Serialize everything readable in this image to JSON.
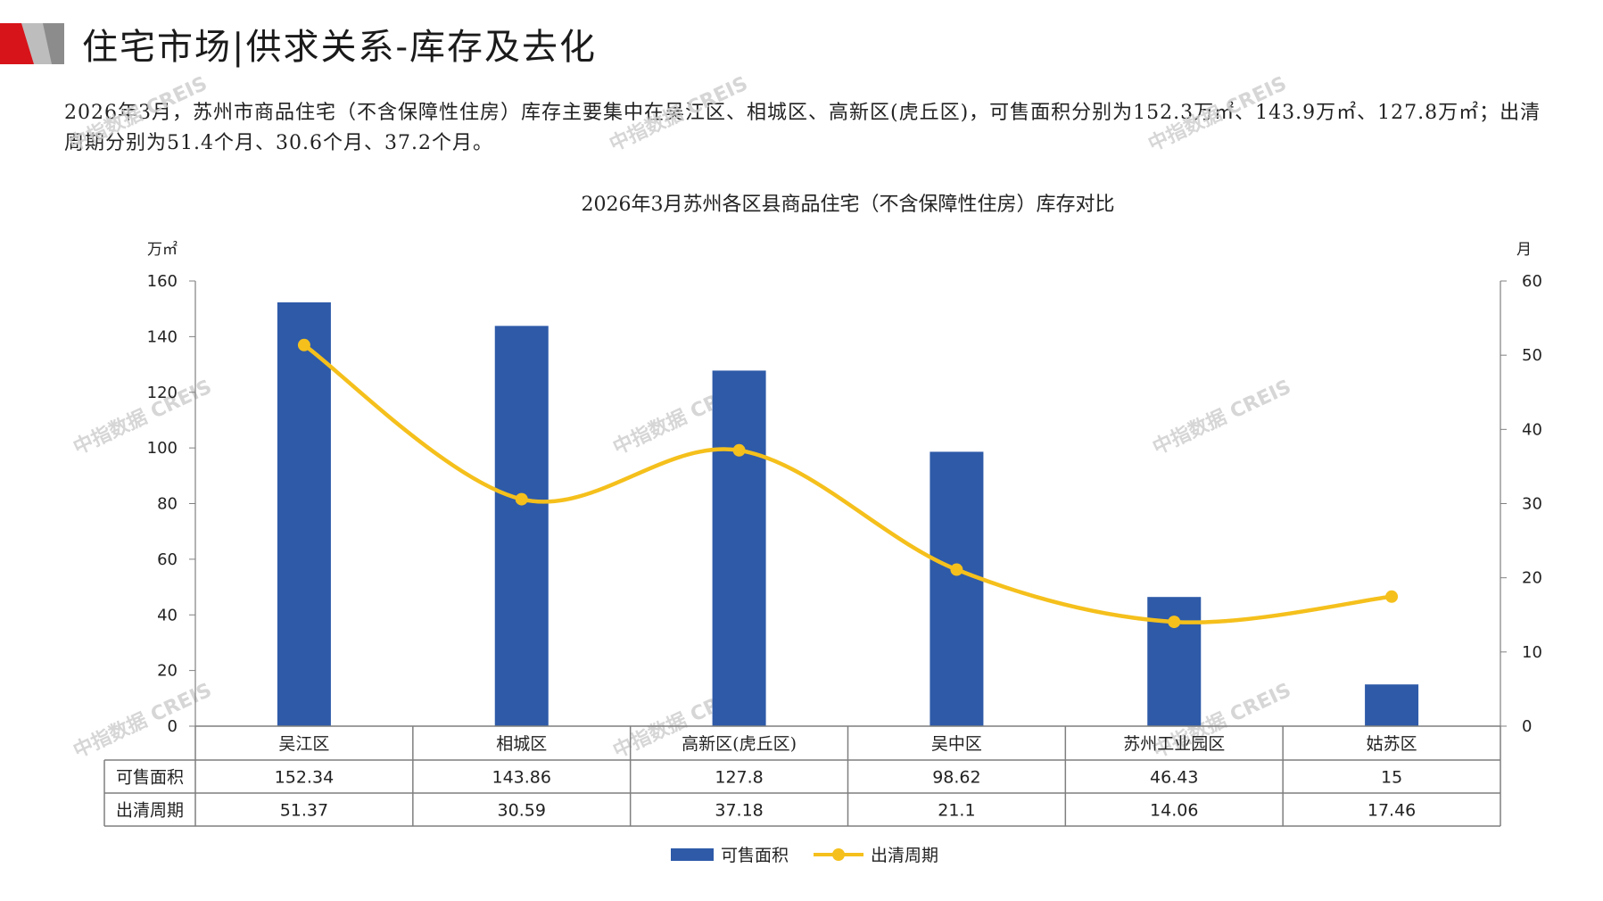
{
  "header": {
    "title": "住宅市场|供求关系-库存及去化"
  },
  "intro": {
    "text": "2026年3月，苏州市商品住宅（不含保障性住房）库存主要集中在吴江区、相城区、高新区(虎丘区)，可售面积分别为152.3万㎡、143.9万㎡、127.8万㎡；出清周期分别为51.4个月、30.6个月、37.2个月。"
  },
  "watermark": "中指数据 CREIS",
  "colors": {
    "bar": "#2E5AA8",
    "line": "#F5C01C",
    "accent": "#D7141A"
  },
  "chart_data": {
    "type": "bar+line",
    "title": "2026年3月苏州各区县商品住宅（不含保障性住房）库存对比",
    "ylabel_left": "万㎡",
    "ylabel_right": "月",
    "ylim_left": [
      0,
      160
    ],
    "yticks_left": [
      0,
      20,
      40,
      60,
      80,
      100,
      120,
      140,
      160
    ],
    "ylim_right": [
      0,
      60
    ],
    "yticks_right": [
      0,
      10,
      20,
      30,
      40,
      50,
      60
    ],
    "categories": [
      "吴江区",
      "相城区",
      "高新区(虎丘区)",
      "吴中区",
      "苏州工业园区",
      "姑苏区"
    ],
    "series": [
      {
        "name": "可售面积",
        "type": "bar",
        "axis": "left",
        "values": [
          152.34,
          143.86,
          127.8,
          98.62,
          46.43,
          15
        ],
        "labels": [
          "152.34",
          "143.86",
          "127.8",
          "98.62",
          "46.43",
          "15"
        ]
      },
      {
        "name": "出清周期",
        "type": "line",
        "axis": "right",
        "values": [
          51.37,
          30.59,
          37.18,
          21.1,
          14.06,
          17.46
        ],
        "labels": [
          "51.37",
          "30.59",
          "37.18",
          "21.1",
          "14.06",
          "17.46"
        ]
      }
    ],
    "grid": false,
    "legend_position": "bottom",
    "data_table": true
  }
}
